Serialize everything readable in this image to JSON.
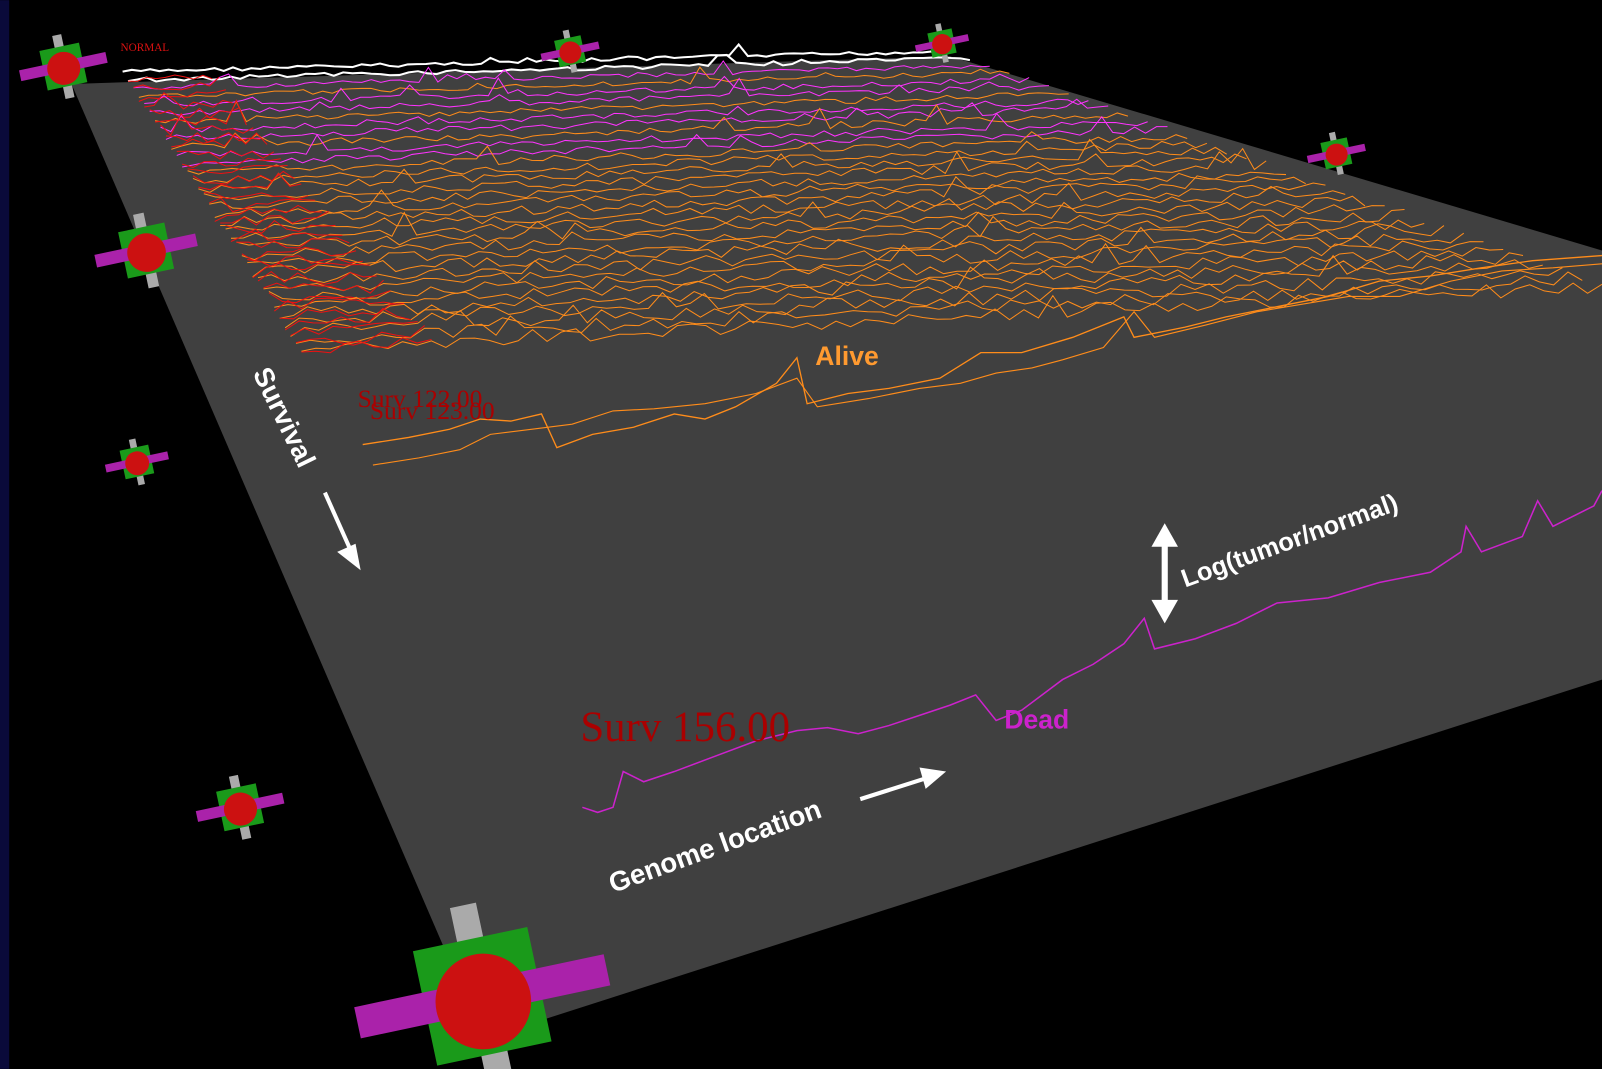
{
  "labels": {
    "alive": "Alive",
    "dead": "Dead",
    "survival_axis": "Survival",
    "genome_axis": "Genome location",
    "log_axis": "Log(tumor/normal)",
    "surv_large": "Surv 156.00",
    "surv_mid_a": "Surv 122.00",
    "surv_mid_b": "Surv 123.00",
    "normal": "NORMAL"
  }
}
